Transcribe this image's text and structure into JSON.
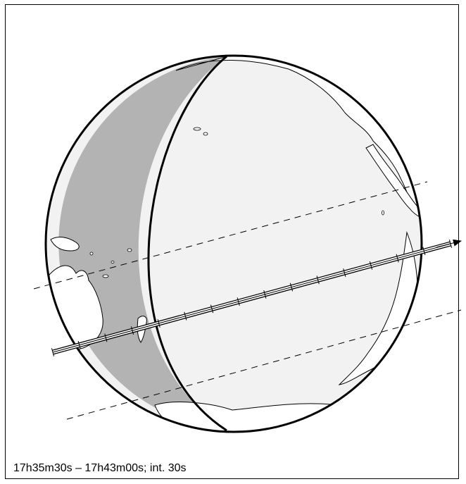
{
  "map": {
    "caption": "17h35m30s – 17h43m00s; int. 30s",
    "colors": {
      "night_shade": "#b3b3b3",
      "day_side": "#f2f2f2",
      "land": "#ffffff",
      "outline": "#000000"
    },
    "labels_on_map": []
  }
}
